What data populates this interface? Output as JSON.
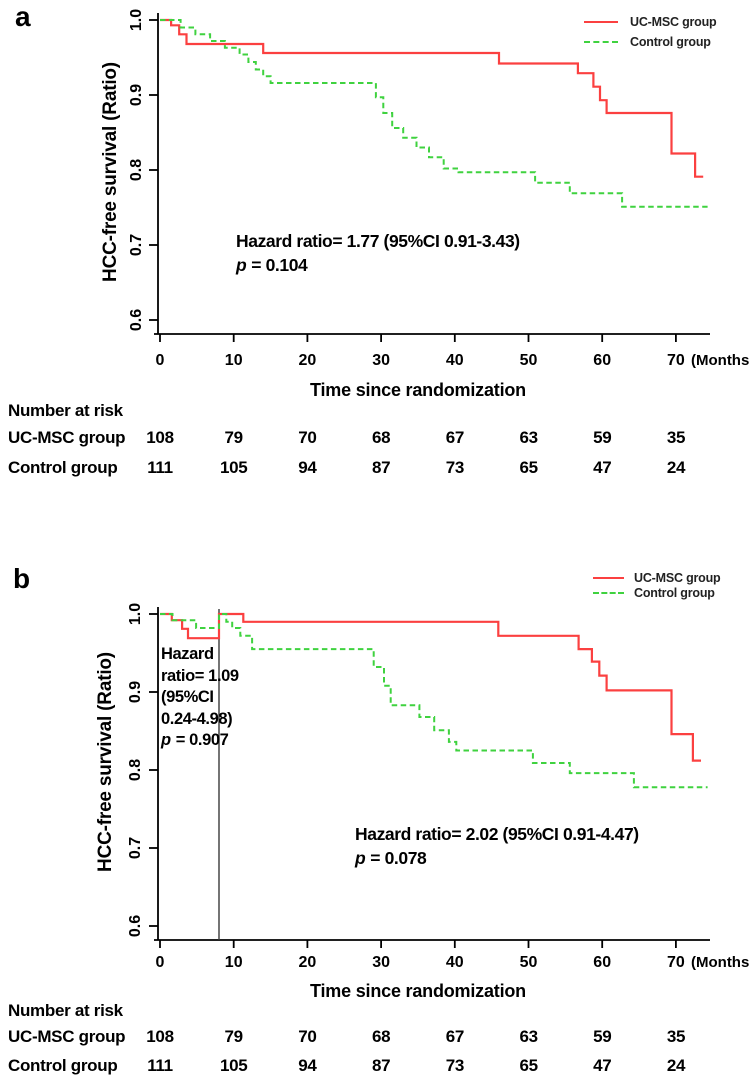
{
  "panels": [
    {
      "letter": "a",
      "number_at_risk": {
        "title": "Number at risk",
        "rows": [
          {
            "label": "UC-MSC group",
            "values": [
              "108",
              "79",
              "70",
              "68",
              "67",
              "63",
              "59",
              "35"
            ]
          },
          {
            "label": "Control group",
            "values": [
              "111",
              "105",
              "94",
              "87",
              "73",
              "65",
              "47",
              "24"
            ]
          }
        ]
      }
    },
    {
      "letter": "b",
      "number_at_risk": {
        "title": "Number at risk",
        "rows": [
          {
            "label": "UC-MSC group",
            "values": [
              "108",
              "79",
              "70",
              "68",
              "67",
              "63",
              "59",
              "35"
            ]
          },
          {
            "label": "Control group",
            "values": [
              "111",
              "105",
              "94",
              "87",
              "73",
              "65",
              "47",
              "24"
            ]
          }
        ]
      }
    }
  ],
  "chart_data": [
    {
      "panel": "a",
      "type": "line",
      "subtype": "kaplan_meier_step",
      "title": "",
      "xlabel": "Time since randomization",
      "x_unit": "(Months)",
      "ylabel": "HCC-free survival (Ratio)",
      "xlim": [
        0,
        74.5
      ],
      "ylim": [
        0.58,
        1.005
      ],
      "x_ticks": [
        0,
        10,
        20,
        30,
        40,
        50,
        60,
        70
      ],
      "y_ticks": [
        "1.0",
        "0.9",
        "0.8",
        "0.7",
        "0.6"
      ],
      "grid": false,
      "legend_position": "top-right",
      "series": [
        {
          "name": "UC-MSC group",
          "color": "#fb4040",
          "dashed": false,
          "steps": [
            [
              0,
              1.0
            ],
            [
              1.5,
              0.993
            ],
            [
              2.6,
              0.981
            ],
            [
              3.6,
              0.968
            ],
            [
              14,
              0.956
            ],
            [
              46,
              0.942
            ],
            [
              56.7,
              0.929
            ],
            [
              58.8,
              0.911
            ],
            [
              59.7,
              0.893
            ],
            [
              60.6,
              0.876
            ],
            [
              69.4,
              0.822
            ],
            [
              72.6,
              0.791
            ]
          ],
          "end_month": 73.7
        },
        {
          "name": "Control group",
          "color": "#3fd23f",
          "dashed": true,
          "steps": [
            [
              0,
              1.0
            ],
            [
              2.8,
              0.99
            ],
            [
              4.8,
              0.981
            ],
            [
              6.8,
              0.972
            ],
            [
              8.8,
              0.963
            ],
            [
              10.8,
              0.954
            ],
            [
              12,
              0.944
            ],
            [
              13,
              0.934
            ],
            [
              14,
              0.925
            ],
            [
              15,
              0.916
            ],
            [
              29.3,
              0.897
            ],
            [
              30.3,
              0.876
            ],
            [
              31.5,
              0.856
            ],
            [
              33,
              0.843
            ],
            [
              34.8,
              0.83
            ],
            [
              36.5,
              0.817
            ],
            [
              38.5,
              0.802
            ],
            [
              40.5,
              0.797
            ],
            [
              50.9,
              0.783
            ],
            [
              55.6,
              0.769
            ],
            [
              62.7,
              0.751
            ]
          ],
          "end_month": 74.3
        }
      ],
      "annotations": {
        "main": {
          "text": "Hazard ratio= 1.77 (95%CI 0.91-3.43)",
          "p_italic": "p",
          "p_rest": "= 0.104"
        }
      }
    },
    {
      "panel": "b",
      "type": "line",
      "subtype": "kaplan_meier_step_landmark",
      "title": "",
      "xlabel": "Time since randomization",
      "x_unit": "(Months)",
      "ylabel": "HCC-free survival (Ratio)",
      "xlim": [
        0,
        74.5
      ],
      "ylim": [
        0.58,
        1.005
      ],
      "x_ticks": [
        0,
        10,
        20,
        30,
        40,
        50,
        60,
        70
      ],
      "y_ticks": [
        "1.0",
        "0.9",
        "0.8",
        "0.7",
        "0.6"
      ],
      "grid": false,
      "legend_position": "top-right",
      "landmark_line_month": 8,
      "series": [
        {
          "name": "UC-MSC group",
          "color": "#fb4040",
          "dashed": false,
          "steps": [
            [
              0,
              1.0
            ],
            [
              1.6,
              0.992
            ],
            [
              3.0,
              0.981
            ],
            [
              3.8,
              0.969
            ],
            [
              8,
              1.0
            ],
            [
              11.3,
              0.99
            ],
            [
              45.9,
              0.972
            ],
            [
              56.8,
              0.955
            ],
            [
              58.6,
              0.939
            ],
            [
              59.6,
              0.921
            ],
            [
              60.6,
              0.902
            ],
            [
              69.4,
              0.846
            ],
            [
              72.3,
              0.812
            ]
          ],
          "end_month": 73.4
        },
        {
          "name": "Control group",
          "color": "#3fd23f",
          "dashed": true,
          "steps": [
            [
              0,
              1.0
            ],
            [
              1.7,
              0.992
            ],
            [
              4.9,
              0.982
            ],
            [
              8,
              1.0
            ],
            [
              9,
              0.99
            ],
            [
              9.8,
              0.982
            ],
            [
              10.9,
              0.972
            ],
            [
              12.5,
              0.955
            ],
            [
              29,
              0.932
            ],
            [
              30.4,
              0.908
            ],
            [
              31.3,
              0.883
            ],
            [
              35.2,
              0.868
            ],
            [
              37.2,
              0.851
            ],
            [
              39.2,
              0.836
            ],
            [
              40.2,
              0.825
            ],
            [
              50.6,
              0.809
            ],
            [
              55.6,
              0.796
            ],
            [
              64.3,
              0.778
            ]
          ],
          "end_month": 74.3
        }
      ],
      "annotations": {
        "left": {
          "lines": [
            "Hazard",
            "ratio= 1.09",
            "(95%CI",
            "0.24-4.98)"
          ],
          "p_italic": "p",
          "p_rest": "= 0.907"
        },
        "main": {
          "text": "Hazard ratio= 2.02 (95%CI 0.91-4.47)",
          "p_italic": "p",
          "p_rest": "= 0.078"
        }
      }
    }
  ]
}
